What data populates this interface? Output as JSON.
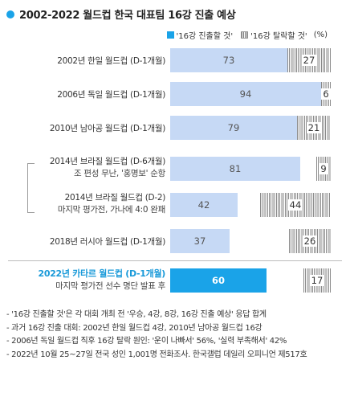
{
  "title": "2002-2022 월드컵 한국 대표팀 16강 진출 예상",
  "legend": {
    "advance": "'16강 진출할 것'",
    "eliminate": "'16강 탈락할 것'",
    "unit": "(%)"
  },
  "colors": {
    "advance": "#c6d9f5",
    "advance_highlight": "#1aa3e8",
    "eliminate": "#8a8a8a"
  },
  "chart_data": {
    "type": "bar",
    "stacked": true,
    "orientation": "horizontal",
    "xlim": [
      0,
      100
    ],
    "categories": [
      "2002년 한일 월드컵 (D-1개월)",
      "2006년 독일 월드컵 (D-1개월)",
      "2010년 남아공 월드컵 (D-1개월)",
      "2014년 브라질 월드컵 (D-6개월) 조 편성 무난, '홍명보' 순항",
      "2014년 브라질 월드컵 (D-2) 마지막 평가전, 가나에 4:0 완패",
      "2018년 러시아 월드컵 (D-1개월)",
      "2022년 카타르 월드컵 (D-1개월) 마지막 평가전 선수 명단 발표 후"
    ],
    "series": [
      {
        "name": "'16강 진출할 것'",
        "values": [
          73,
          94,
          79,
          81,
          42,
          37,
          60
        ]
      },
      {
        "name": "'16강 탈락할 것'",
        "values": [
          27,
          6,
          21,
          9,
          44,
          26,
          17
        ]
      }
    ]
  },
  "rows": [
    {
      "label1": "2002년 한일 월드컵 (D-1개월)",
      "label2": "",
      "advance": 73,
      "eliminate": 27,
      "highlight": false
    },
    {
      "label1": "2006년 독일 월드컵 (D-1개월)",
      "label2": "",
      "advance": 94,
      "eliminate": 6,
      "highlight": false
    },
    {
      "label1": "2010년 남아공 월드컵 (D-1개월)",
      "label2": "",
      "advance": 79,
      "eliminate": 21,
      "highlight": false
    },
    {
      "label1": "2014년 브라질 월드컵 (D-6개월)",
      "label2": "조 편성 무난, '홍명보' 순항",
      "advance": 81,
      "eliminate": 9,
      "highlight": false
    },
    {
      "label1": "2014년 브라질 월드컵 (D-2)",
      "label2": "마지막 평가전, 가나에 4:0 완패",
      "advance": 42,
      "eliminate": 44,
      "highlight": false
    },
    {
      "label1": "2018년 러시아 월드컵 (D-1개월)",
      "label2": "",
      "advance": 37,
      "eliminate": 26,
      "highlight": false
    },
    {
      "label1": "2022년 카타르 월드컵 (D-1개월)",
      "label2": "마지막 평가전 선수 명단 발표 후",
      "advance": 60,
      "eliminate": 17,
      "highlight": true
    }
  ],
  "notes": [
    "- '16강 진출할 것'은 각 대회 개최 전 '우승, 4강, 8강, 16강 진출 예상' 응답 합계",
    "- 과거 16강 진출 대회: 2002년 한일 월드컵 4강, 2010년 남아공 월드컵 16강",
    "- 2006년 독일 월드컵 직후 16강 탈락 원인: '운이 나빠서' 56%, '실력 부족해서' 42%",
    "- 2022년 10월 25~27일 전국 성인 1,001명 전화조사. 한국갤럽 데일리 오피니언 제517호"
  ]
}
